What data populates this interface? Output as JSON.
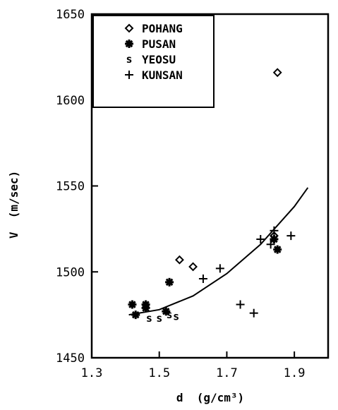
{
  "chart_data": {
    "type": "scatter",
    "xlabel": "d  (g/cm³)",
    "ylabel": "V  (m/sec)",
    "xlim": [
      1.3,
      2.0
    ],
    "ylim": [
      1450,
      1650
    ],
    "xticks": [
      1.3,
      1.5,
      1.7,
      1.9
    ],
    "yticks": [
      1450,
      1500,
      1550,
      1600,
      1650
    ],
    "xtick_labels": [
      "1.3",
      "1.5",
      "1.7",
      "1.9"
    ],
    "ytick_labels": [
      "1450",
      "1500",
      "1550",
      "1600",
      "1650"
    ],
    "legend_position": "top-left",
    "grid": false,
    "series": [
      {
        "name": "POHANG",
        "marker": "diamond",
        "points": [
          [
            1.56,
            1507
          ],
          [
            1.6,
            1503
          ],
          [
            1.84,
            1521
          ],
          [
            1.85,
            1616
          ]
        ]
      },
      {
        "name": "PUSAN",
        "marker": "asterisk",
        "points": [
          [
            1.42,
            1481
          ],
          [
            1.43,
            1475
          ],
          [
            1.46,
            1481
          ],
          [
            1.46,
            1479
          ],
          [
            1.52,
            1477
          ],
          [
            1.53,
            1494
          ],
          [
            1.84,
            1519
          ],
          [
            1.85,
            1513
          ]
        ]
      },
      {
        "name": "YEOSU",
        "marker": "s",
        "points": [
          [
            1.47,
            1473
          ],
          [
            1.5,
            1473
          ],
          [
            1.53,
            1475
          ],
          [
            1.55,
            1474
          ]
        ]
      },
      {
        "name": "KUNSAN",
        "marker": "plus",
        "points": [
          [
            1.63,
            1496
          ],
          [
            1.68,
            1502
          ],
          [
            1.74,
            1481
          ],
          [
            1.78,
            1476
          ],
          [
            1.8,
            1519
          ],
          [
            1.83,
            1516
          ],
          [
            1.84,
            1524
          ],
          [
            1.89,
            1521
          ]
        ]
      }
    ],
    "fit_curve": {
      "type": "quadratic",
      "points": [
        [
          1.41,
          1475
        ],
        [
          1.5,
          1478
        ],
        [
          1.6,
          1486
        ],
        [
          1.7,
          1499
        ],
        [
          1.8,
          1516
        ],
        [
          1.9,
          1538
        ],
        [
          1.94,
          1549
        ]
      ]
    }
  }
}
